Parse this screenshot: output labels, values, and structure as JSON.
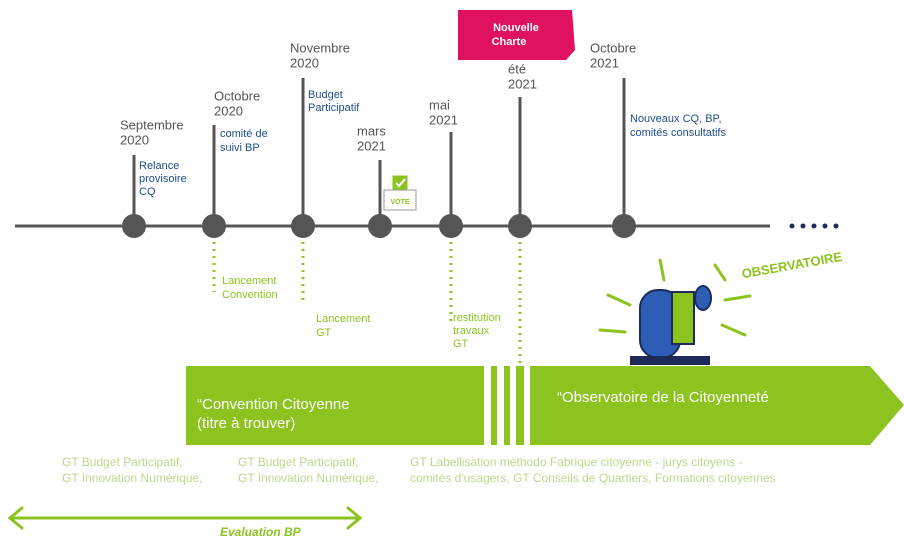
{
  "badge": [
    "Nouvelle",
    "Charte"
  ],
  "milestones": [
    {
      "date": [
        "Septembre",
        "2020"
      ],
      "note": [
        "Relance",
        "provisoire",
        "CQ"
      ]
    },
    {
      "date": [
        "Octobre",
        "2020"
      ],
      "note": [
        "comité de",
        "suivi BP"
      ]
    },
    {
      "date": [
        "Novembre",
        "2020"
      ],
      "note": [
        "Budget",
        "Participatif"
      ]
    },
    {
      "date": [
        "mars",
        "2021"
      ]
    },
    {
      "date": [
        "mai",
        "2021"
      ]
    },
    {
      "date": [
        "été",
        "2021"
      ]
    },
    {
      "date": [
        "Octobre",
        "2021"
      ],
      "note": [
        "Nouveaux CQ, BP,",
        "comités consultatifs"
      ]
    }
  ],
  "vote_icon": "VOTE",
  "below": [
    [
      "Lancement",
      "Convention"
    ],
    [
      "Lancement",
      "GT"
    ],
    [
      "restitution",
      "travaux",
      "GT"
    ]
  ],
  "observatoire_label": "OBSERVATOIRE",
  "bands": [
    [
      "“Convention Citoyenne",
      "(titre à trouver)"
    ],
    [
      "“Observatoire de la Citoyenneté"
    ]
  ],
  "groups": [
    [
      "GT Budget Participatif,",
      "GT Innovation Numérique,"
    ],
    [
      "GT Budget Participatif,",
      "GT Innovation Numérique,"
    ],
    [
      "GT Labellisation méthodo Fabrique citoyenne - jurys citoyens -",
      "comités d'usagers, GT Conseils de Quartiers, Formations citoyennes"
    ]
  ],
  "evaluation": "Evaluation BP"
}
